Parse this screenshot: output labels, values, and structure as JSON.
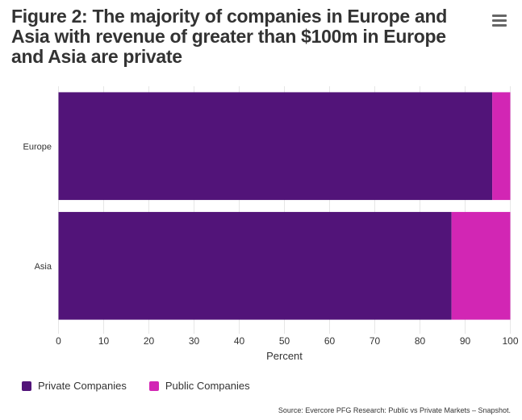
{
  "title": "Figure 2: The majority of companies in Europe and Asia with revenue of greater than $100m in Europe and Asia are private",
  "menu_icon": "hamburger-menu-icon",
  "source": "Source: Evercore PFG Research: Public vs Private Markets – Snapshot.",
  "chart_data": {
    "type": "bar",
    "orientation": "horizontal",
    "stacked": true,
    "categories": [
      "Europe",
      "Asia"
    ],
    "series": [
      {
        "name": "Private Companies",
        "color": "#521479",
        "values": [
          96,
          87
        ]
      },
      {
        "name": "Public Companies",
        "color": "#d226b4",
        "values": [
          4,
          13
        ]
      }
    ],
    "xlabel": "Percent",
    "ylabel": "",
    "xlim": [
      0,
      100
    ],
    "xticks": [
      "0",
      "10",
      "20",
      "30",
      "40",
      "50",
      "60",
      "70",
      "80",
      "90",
      "100"
    ],
    "grid": true,
    "legend_position": "bottom-left"
  }
}
